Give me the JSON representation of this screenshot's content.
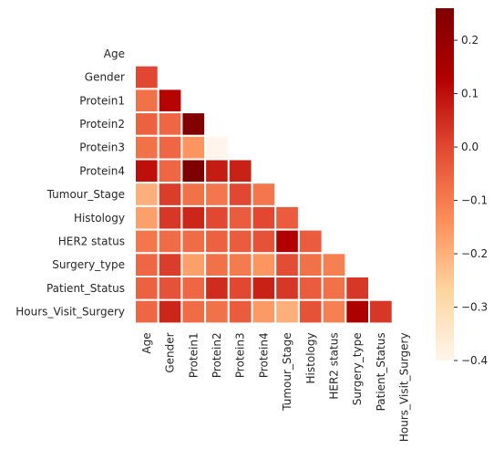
{
  "chart_data": {
    "type": "heatmap",
    "title": "",
    "xlabel": "",
    "ylabel": "",
    "colormap": "OrRd-like (Reds)",
    "color_stops": [
      "#fff5eb",
      "#fdd49e",
      "#fc8d59",
      "#e34a33",
      "#b30000",
      "#7f0000"
    ],
    "mask": "upper triangle including diagonal",
    "labels": [
      "Age",
      "Gender",
      "Protein1",
      "Protein2",
      "Protein3",
      "Protein4",
      "Tumour_Stage",
      "Histology",
      "HER2 status",
      "Surgery_type",
      "Patient_Status",
      "Hours_Visit_Surgery"
    ],
    "vmin": -0.4,
    "vmax": 0.26,
    "colorbar_ticks": [
      "0.2",
      "0.1",
      "0.0",
      "−0.1",
      "−0.2",
      "−0.3",
      "−0.4"
    ],
    "colorbar_tick_values": [
      0.2,
      0.1,
      0.0,
      -0.1,
      -0.2,
      -0.3,
      -0.4
    ],
    "values": [
      [],
      [
        0.0
      ],
      [
        -0.08,
        0.12
      ],
      [
        -0.05,
        -0.06,
        0.25
      ],
      [
        -0.08,
        -0.06,
        -0.15,
        -0.4
      ],
      [
        0.1,
        -0.06,
        0.26,
        0.08,
        0.07
      ],
      [
        -0.2,
        0.02,
        -0.08,
        -0.09,
        0.0,
        -0.09
      ],
      [
        -0.17,
        0.03,
        0.06,
        0.0,
        -0.04,
        0.0,
        -0.04
      ],
      [
        -0.09,
        -0.07,
        -0.07,
        -0.05,
        -0.04,
        -0.02,
        0.13,
        -0.04
      ],
      [
        -0.06,
        0.02,
        -0.17,
        -0.08,
        -0.1,
        -0.15,
        -0.01,
        -0.08,
        -0.11
      ],
      [
        -0.05,
        -0.02,
        -0.06,
        0.05,
        0.0,
        0.07,
        0.03,
        -0.04,
        -0.08,
        0.03
      ],
      [
        -0.06,
        0.06,
        -0.07,
        -0.08,
        -0.04,
        -0.16,
        -0.2,
        -0.02,
        -0.11,
        0.14,
        0.03
      ]
    ]
  }
}
